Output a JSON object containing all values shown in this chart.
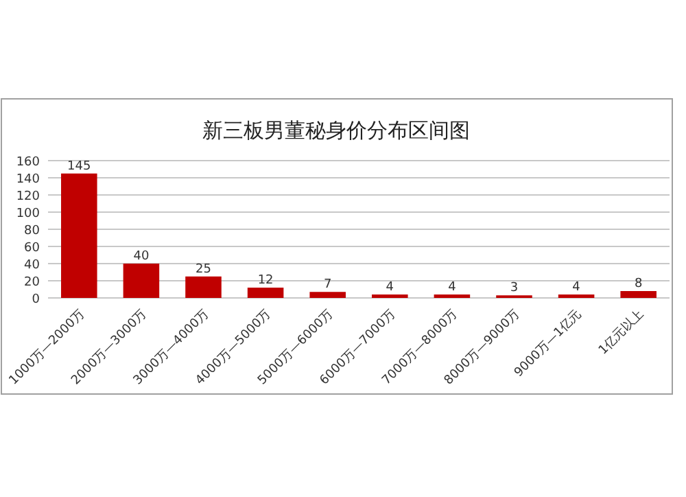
{
  "chart_data": {
    "type": "bar",
    "title": "新三板男董秘身价分布区间图",
    "categories": [
      "1000万—2000万",
      "2000万—3000万",
      "3000万—4000万",
      "4000万—5000万",
      "5000万—6000万",
      "6000万—7000万",
      "7000万—8000万",
      "8000万—9000万",
      "9000万—1亿元",
      "1亿元以上"
    ],
    "values": [
      145,
      40,
      25,
      12,
      7,
      4,
      4,
      3,
      4,
      8
    ],
    "color": "#c00000",
    "ylim": [
      0,
      160
    ],
    "yticks": [
      0,
      20,
      40,
      60,
      80,
      100,
      120,
      140,
      160
    ],
    "grid": "y",
    "data_labels": true
  }
}
